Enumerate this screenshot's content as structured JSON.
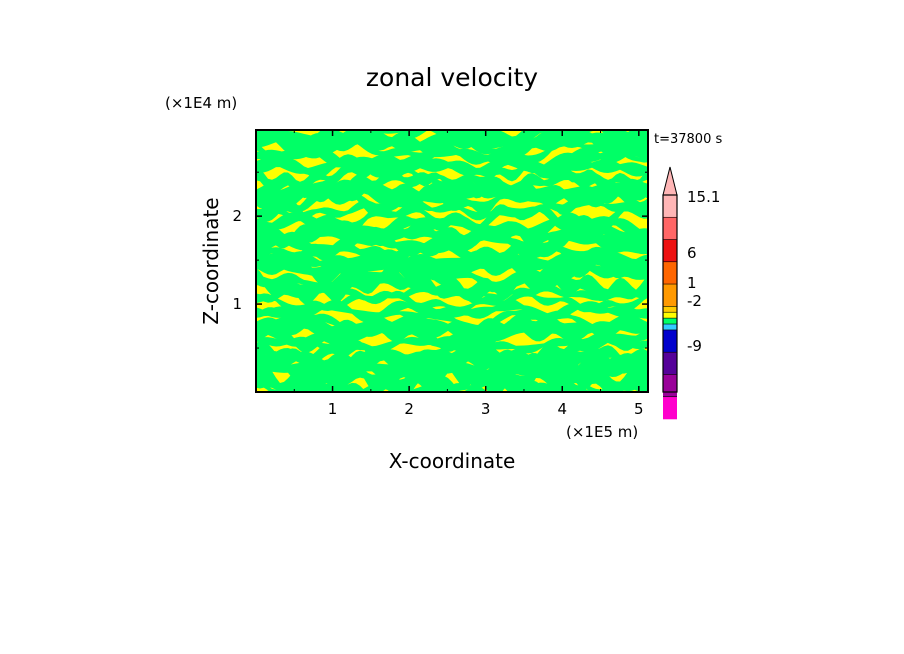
{
  "chart_data": {
    "type": "heatmap",
    "title": "zonal velocity",
    "xlabel": "X-coordinate",
    "ylabel": "Z-coordinate",
    "x_unit": "(×1E5 m)",
    "y_unit": "(×1E4 m)",
    "time_label": "t=37800 s",
    "xlim": [
      0,
      5.12
    ],
    "ylim": [
      0,
      2.98
    ],
    "x_ticks": [
      1,
      2,
      3,
      4,
      5
    ],
    "x_tick_labels": [
      "1",
      "2",
      "3",
      "4",
      "5"
    ],
    "y_ticks": [
      1,
      2
    ],
    "y_tick_labels": [
      "1",
      "2"
    ],
    "colorbar": {
      "label_values": [
        15.1,
        6,
        1,
        -2,
        -9
      ],
      "labels": [
        "15.1",
        "6",
        "1",
        "-2",
        "-9"
      ],
      "levels": [
        {
          "color": "#ffb6b6"
        },
        {
          "color": "#ff6666"
        },
        {
          "color": "#ee1111"
        },
        {
          "color": "#ff6600"
        },
        {
          "color": "#ff9900"
        },
        {
          "color": "#ffcc00"
        },
        {
          "color": "#ffff00"
        },
        {
          "color": "#00ff66"
        },
        {
          "color": "#33ccff"
        },
        {
          "color": "#0000cc"
        },
        {
          "color": "#550099"
        },
        {
          "color": "#990099"
        },
        {
          "color": "#ff00cc"
        }
      ]
    },
    "field_colors": {
      "positive": "#ffff00",
      "negative": "#00ff66"
    }
  }
}
